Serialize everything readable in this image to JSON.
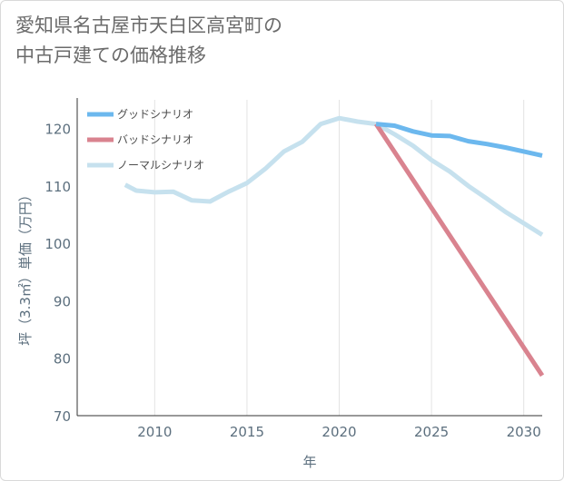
{
  "title_line1": "愛知県名古屋市天白区高宮町の",
  "title_line2": "中古戸建ての価格推移",
  "chart_data": {
    "type": "line",
    "xlabel": "年",
    "ylabel": "坪（3.3㎡）単価（万円）",
    "xlim": [
      2005.8,
      2031
    ],
    "ylim": [
      70,
      125
    ],
    "x_ticks": [
      2010,
      2015,
      2020,
      2025,
      2030
    ],
    "y_ticks": [
      70,
      80,
      90,
      100,
      110,
      120
    ],
    "grid": "vertical",
    "legend_position": "top-left",
    "series": [
      {
        "name": "ノーマルシナリオ",
        "color": "#c6e1ee",
        "points": [
          [
            2008.4,
            110.2
          ],
          [
            2009,
            109.2
          ],
          [
            2010,
            108.9
          ],
          [
            2011,
            109.0
          ],
          [
            2012,
            107.5
          ],
          [
            2013,
            107.3
          ],
          [
            2014,
            109.0
          ],
          [
            2015,
            110.5
          ],
          [
            2016,
            113.0
          ],
          [
            2017,
            116.0
          ],
          [
            2018,
            117.7
          ],
          [
            2019,
            120.8
          ],
          [
            2020,
            121.8
          ],
          [
            2021,
            121.2
          ],
          [
            2022,
            120.8
          ],
          [
            2023,
            119.0
          ],
          [
            2024,
            117.0
          ],
          [
            2025,
            114.5
          ],
          [
            2026,
            112.5
          ],
          [
            2027,
            110.0
          ],
          [
            2028,
            107.8
          ],
          [
            2029,
            105.5
          ],
          [
            2030,
            103.5
          ],
          [
            2031,
            101.5
          ]
        ]
      },
      {
        "name": "バッドシナリオ",
        "color": "#d9838f",
        "points": [
          [
            2022,
            120.8
          ],
          [
            2031,
            77.0
          ]
        ]
      },
      {
        "name": "グッドシナリオ",
        "color": "#6cb8ee",
        "points": [
          [
            2022,
            120.8
          ],
          [
            2023,
            120.5
          ],
          [
            2024,
            119.5
          ],
          [
            2025,
            118.8
          ],
          [
            2026,
            118.7
          ],
          [
            2027,
            117.8
          ],
          [
            2028,
            117.3
          ],
          [
            2029,
            116.7
          ],
          [
            2030,
            116.0
          ],
          [
            2031,
            115.3
          ]
        ]
      }
    ],
    "legend": [
      {
        "label": "グッドシナリオ",
        "color": "#6cb8ee"
      },
      {
        "label": "バッドシナリオ",
        "color": "#d9838f"
      },
      {
        "label": "ノーマルシナリオ",
        "color": "#c6e1ee"
      }
    ]
  }
}
